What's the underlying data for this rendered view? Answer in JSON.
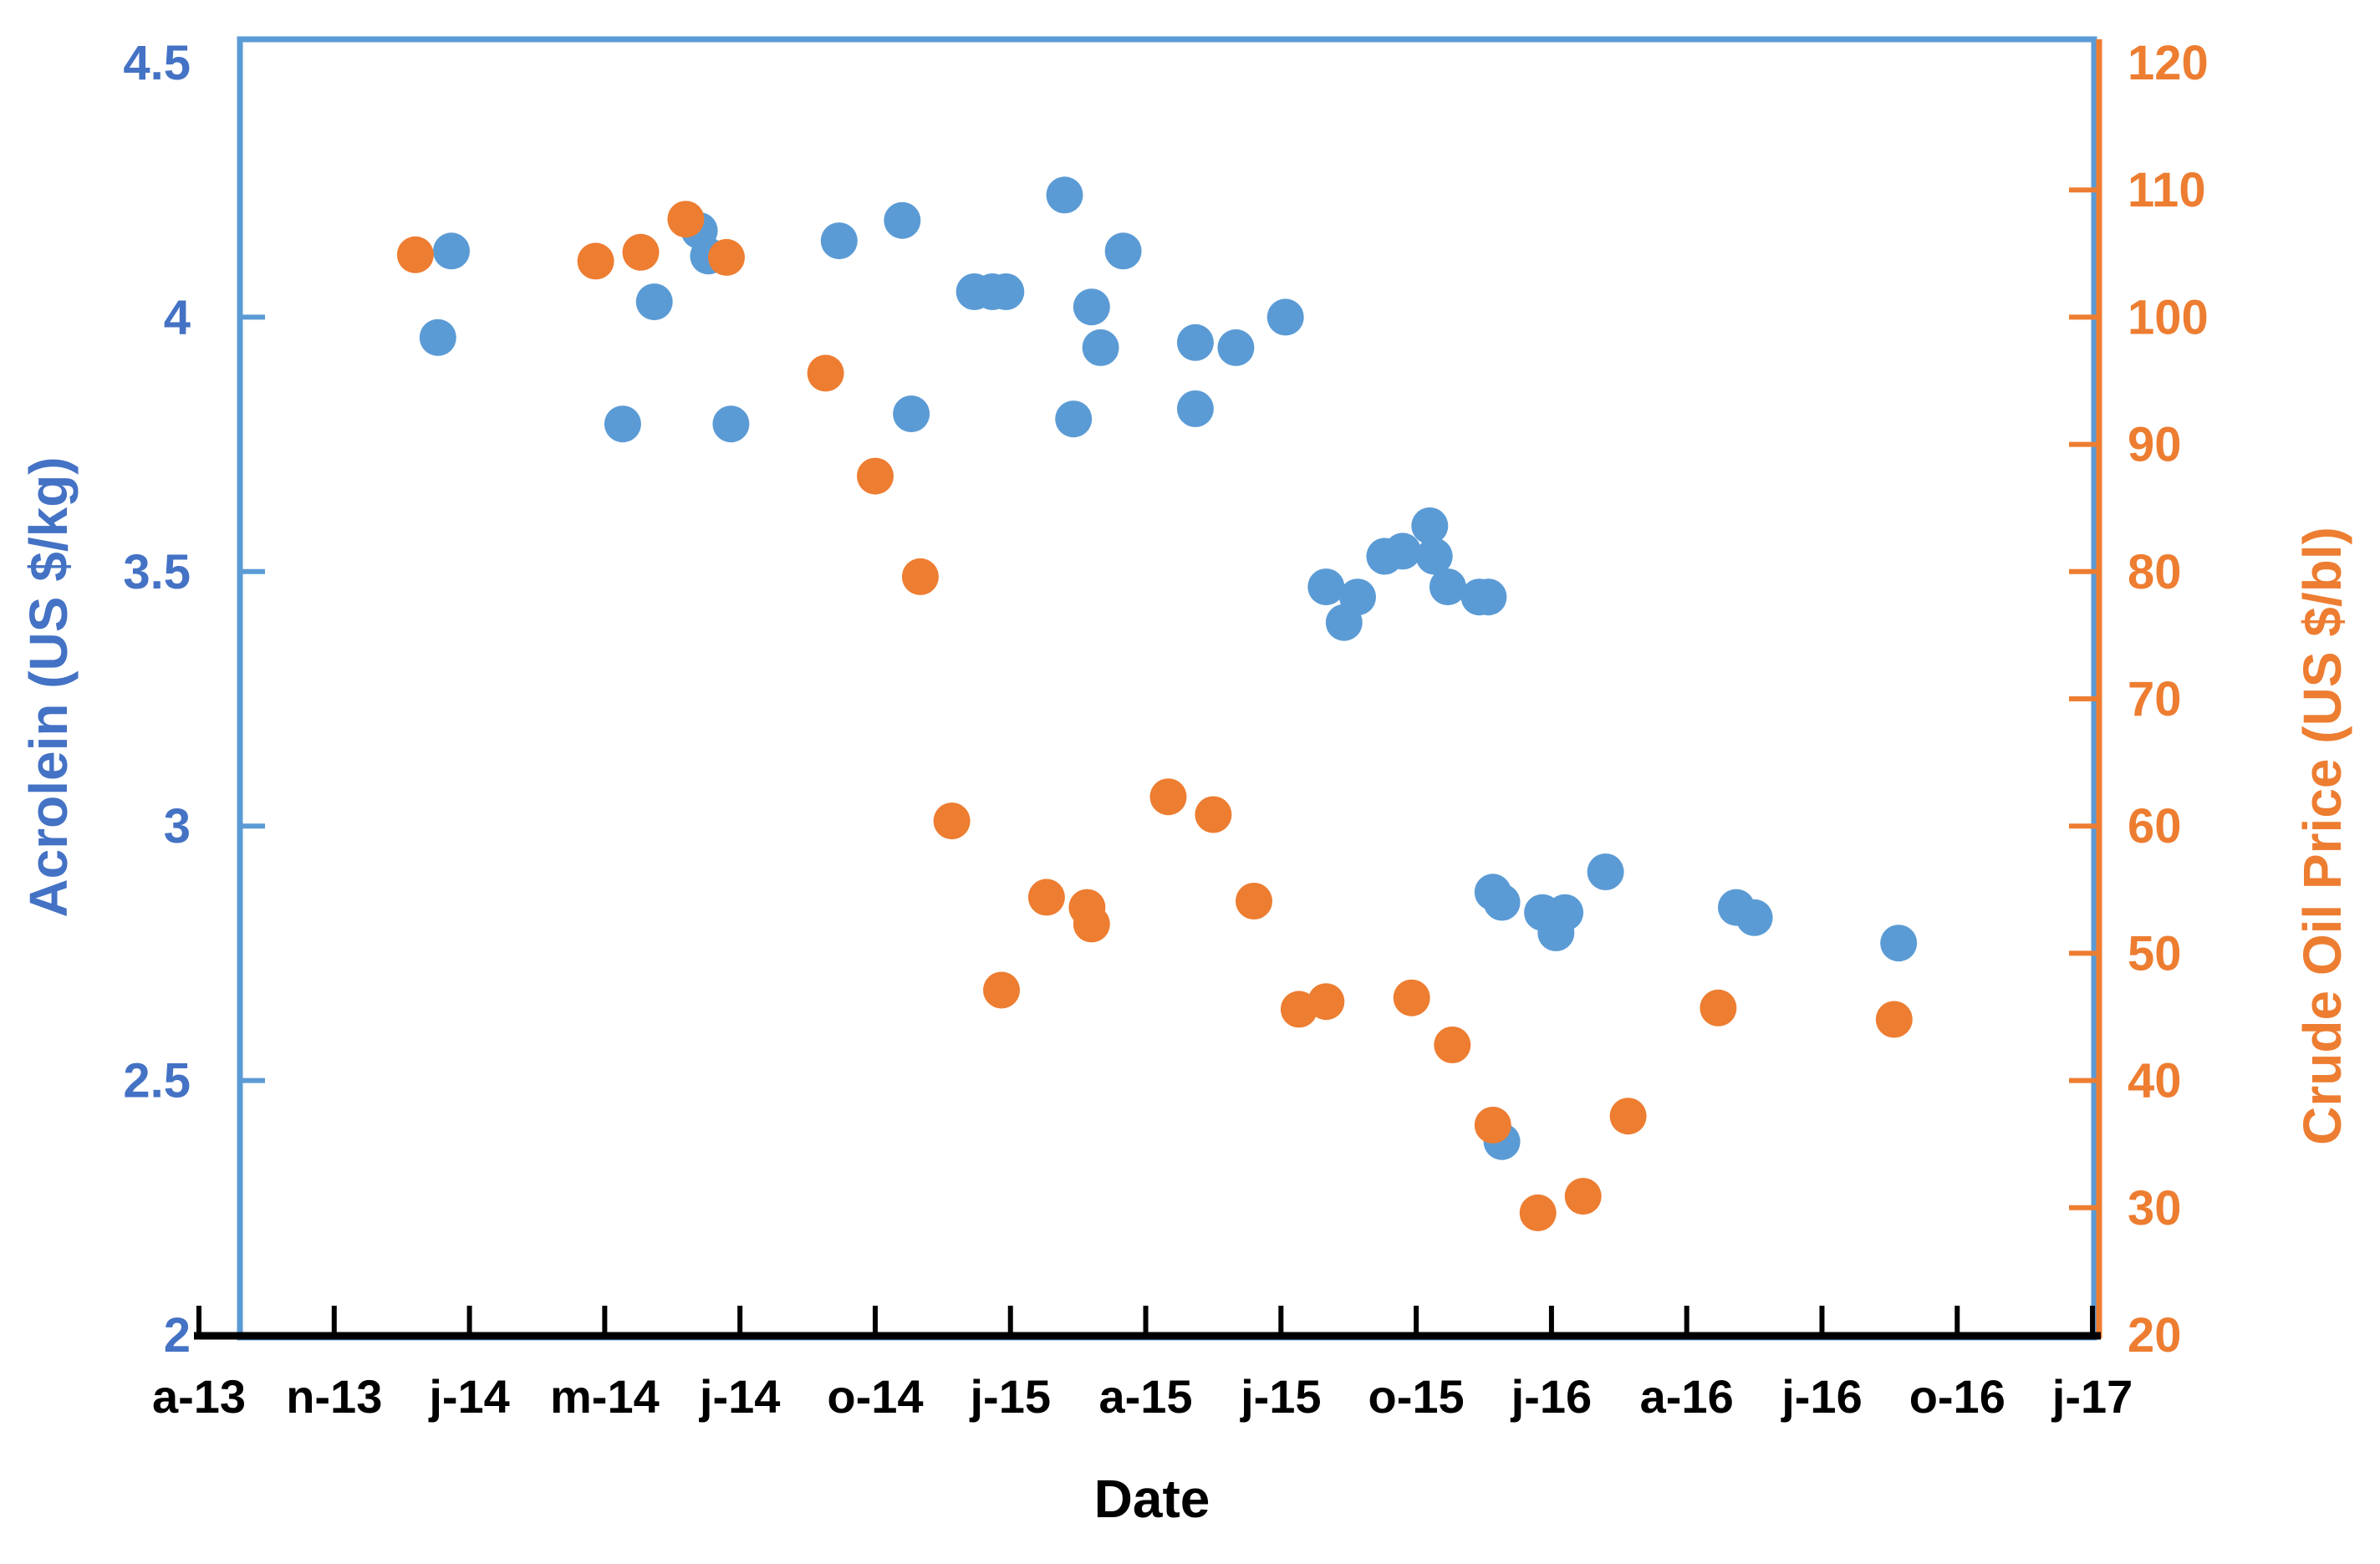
{
  "chart_data": {
    "type": "scatter",
    "title": "",
    "x_axis": {
      "label": "Date",
      "tick_labels": [
        "a-13",
        "n-13",
        "j-14",
        "m-14",
        "j-14",
        "o-14",
        "j-15",
        "a-15",
        "j-15",
        "o-15",
        "j-16",
        "a-16",
        "j-16",
        "o-16",
        "j-17"
      ],
      "months_per_tick": 3,
      "total_months": 42
    },
    "left_axis": {
      "label": "Acrolein (US $/kg)",
      "min": 2,
      "max": 4.5,
      "tick_labels": [
        "4.5",
        "4",
        "3.5",
        "3",
        "2.5",
        "2"
      ],
      "color": "#4472C4"
    },
    "right_axis": {
      "label": "Crude Oil Price (US $/bl)",
      "min": 20,
      "max": 120,
      "tick_labels": [
        "120",
        "110",
        "100",
        "90",
        "80",
        "70",
        "60",
        "50",
        "40",
        "30",
        "20"
      ],
      "color": "#ED7D31"
    },
    "grid": false,
    "legend": "none",
    "series": [
      {
        "name": "Acrolein price",
        "axis": "left",
        "color": "#5B9BD5",
        "marker": "circle",
        "points": [
          [
            5.3,
            3.96
          ],
          [
            5.6,
            4.13
          ],
          [
            9.4,
            3.79
          ],
          [
            10.1,
            4.03
          ],
          [
            11.1,
            4.17
          ],
          [
            11.3,
            4.12
          ],
          [
            11.8,
            3.79
          ],
          [
            14.2,
            4.15
          ],
          [
            15.6,
            4.19
          ],
          [
            15.8,
            3.81
          ],
          [
            17.2,
            4.05
          ],
          [
            17.6,
            4.05
          ],
          [
            17.9,
            4.05
          ],
          [
            19.2,
            4.24
          ],
          [
            19.4,
            3.8
          ],
          [
            19.8,
            4.02
          ],
          [
            20.0,
            3.94
          ],
          [
            20.5,
            4.13
          ],
          [
            22.1,
            3.95
          ],
          [
            22.1,
            3.82
          ],
          [
            23.0,
            3.94
          ],
          [
            24.1,
            4.0
          ],
          [
            25.0,
            3.47
          ],
          [
            25.4,
            3.4
          ],
          [
            25.7,
            3.45
          ],
          [
            26.3,
            3.53
          ],
          [
            26.7,
            3.54
          ],
          [
            27.3,
            3.59
          ],
          [
            27.4,
            3.53
          ],
          [
            27.7,
            3.47
          ],
          [
            28.4,
            3.45
          ],
          [
            28.6,
            3.45
          ],
          [
            28.7,
            2.87
          ],
          [
            28.9,
            2.85
          ],
          [
            28.9,
            2.38
          ],
          [
            29.8,
            2.83
          ],
          [
            30.1,
            2.79
          ],
          [
            30.3,
            2.83
          ],
          [
            31.2,
            2.91
          ],
          [
            34.1,
            2.84
          ],
          [
            34.5,
            2.82
          ],
          [
            37.7,
            2.77
          ]
        ]
      },
      {
        "name": "Crude oil price",
        "axis": "right",
        "color": "#ED7D31",
        "marker": "circle",
        "points": [
          [
            4.8,
            104.9
          ],
          [
            8.8,
            104.4
          ],
          [
            9.8,
            105.1
          ],
          [
            10.8,
            107.7
          ],
          [
            11.7,
            104.7
          ],
          [
            13.9,
            95.6
          ],
          [
            15.0,
            87.5
          ],
          [
            16.0,
            79.6
          ],
          [
            16.7,
            60.4
          ],
          [
            17.8,
            47.1
          ],
          [
            18.8,
            54.4
          ],
          [
            19.7,
            53.6
          ],
          [
            19.8,
            52.3
          ],
          [
            21.5,
            62.3
          ],
          [
            22.5,
            60.9
          ],
          [
            23.4,
            54.1
          ],
          [
            24.4,
            45.6
          ],
          [
            25.0,
            46.2
          ],
          [
            26.9,
            46.5
          ],
          [
            27.8,
            42.8
          ],
          [
            28.7,
            36.5
          ],
          [
            29.7,
            29.6
          ],
          [
            30.7,
            30.9
          ],
          [
            31.7,
            37.2
          ],
          [
            33.7,
            45.7
          ],
          [
            37.6,
            44.8
          ]
        ]
      }
    ]
  }
}
